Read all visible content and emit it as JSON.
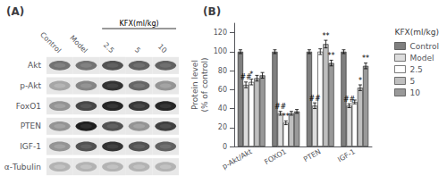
{
  "chart_data": [
    {
      "type": "heatmap",
      "title": "(A)",
      "x": [
        "Control",
        "Model",
        "2.5",
        "5",
        "10"
      ],
      "y": [
        "Akt",
        "p-Akt",
        "FoxO1",
        "PTEN",
        "IGF-1",
        "α-Tubulin"
      ],
      "cells": [
        [
          0.55,
          0.55,
          0.68,
          0.62,
          0.62
        ],
        [
          0.35,
          0.48,
          0.8,
          0.6,
          0.42
        ],
        [
          0.42,
          0.72,
          0.85,
          0.78,
          0.85
        ],
        [
          0.42,
          0.88,
          0.68,
          0.42,
          0.75
        ],
        [
          0.42,
          0.68,
          0.8,
          0.68,
          0.62
        ],
        [
          0.3,
          0.3,
          0.3,
          0.3,
          0.3
        ]
      ],
      "annotations": [
        "KFX(ml/kg)"
      ]
    },
    {
      "type": "bar",
      "title": "(B)",
      "y_label": "Protein level\n(% of control)",
      "categories": [
        "p-Akt/Akt",
        "FOXO1",
        "PTEN",
        "IGF-1"
      ],
      "series": [
        {
          "name": "Control",
          "color": "#7f7f7f",
          "values": [
            100,
            100,
            100,
            100
          ],
          "errors": [
            2,
            2,
            2,
            2
          ]
        },
        {
          "name": "Model",
          "color": "#dddddd",
          "values": [
            65,
            35,
            43,
            43
          ],
          "errors": [
            3,
            2,
            3,
            2
          ],
          "annotations": [
            "##",
            "##",
            "##",
            "##"
          ]
        },
        {
          "name": "2.5",
          "color": "#ffffff",
          "values": [
            68,
            25,
            100,
            47
          ],
          "errors": [
            3,
            2,
            3,
            2
          ],
          "annotations": [
            "*",
            "**",
            null,
            null
          ]
        },
        {
          "name": "5",
          "color": "#bfbfbf",
          "values": [
            72,
            35,
            108,
            62
          ],
          "errors": [
            3,
            2,
            4,
            3
          ],
          "annotations": [
            null,
            null,
            "**",
            "*"
          ]
        },
        {
          "name": "10",
          "color": "#999999",
          "values": [
            75,
            37,
            88,
            85
          ],
          "errors": [
            3,
            2,
            3,
            3
          ],
          "annotations": [
            null,
            null,
            "**",
            "**"
          ]
        }
      ],
      "legend": "upper right",
      "legend_title": "KFX(ml/kg)",
      "ylim": [
        0,
        130
      ],
      "yticks": [
        0,
        20,
        40,
        60,
        80,
        100,
        120
      ],
      "grid": false
    }
  ]
}
